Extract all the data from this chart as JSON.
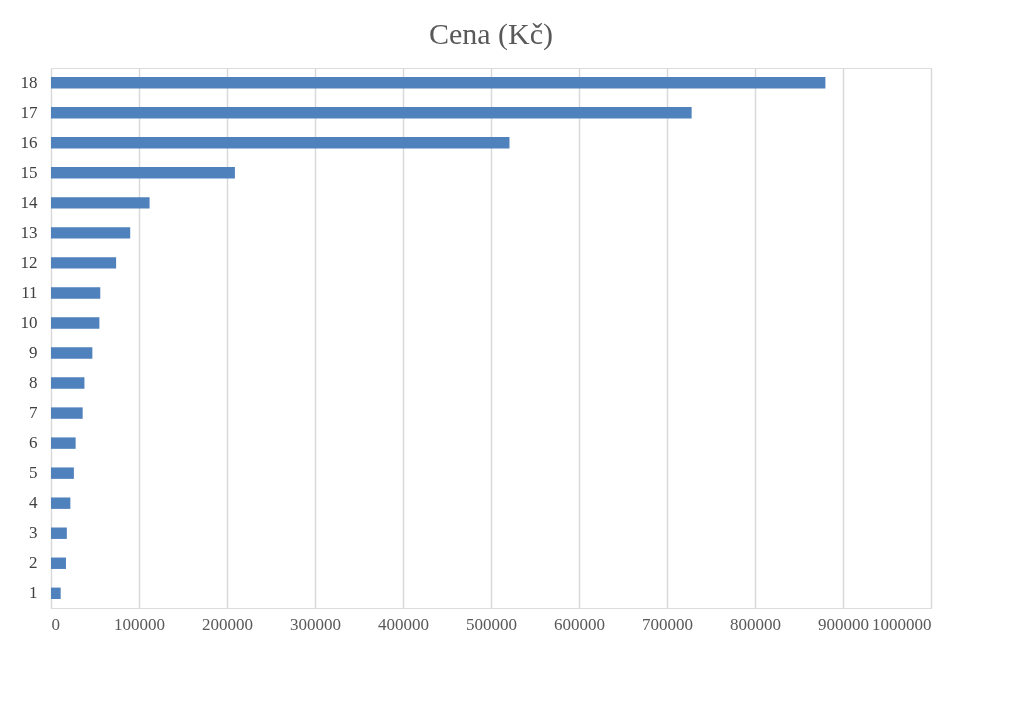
{
  "chart_data": {
    "type": "bar",
    "orientation": "horizontal",
    "title": "Cena (Kč)",
    "categories": [
      "18",
      "17",
      "16",
      "15",
      "14",
      "13",
      "12",
      "11",
      "10",
      "9",
      "8",
      "7",
      "6",
      "5",
      "4",
      "3",
      "2",
      "1"
    ],
    "values": [
      880000,
      728000,
      521000,
      209000,
      112000,
      90000,
      74000,
      56000,
      55000,
      47000,
      38000,
      36000,
      28000,
      26000,
      22000,
      18000,
      17000,
      11000
    ],
    "color": "#4f81bd",
    "xlim": [
      0,
      1000000
    ],
    "xticks": [
      0,
      100000,
      200000,
      300000,
      400000,
      500000,
      600000,
      700000,
      800000,
      900000,
      1000000
    ],
    "grid": "x"
  }
}
